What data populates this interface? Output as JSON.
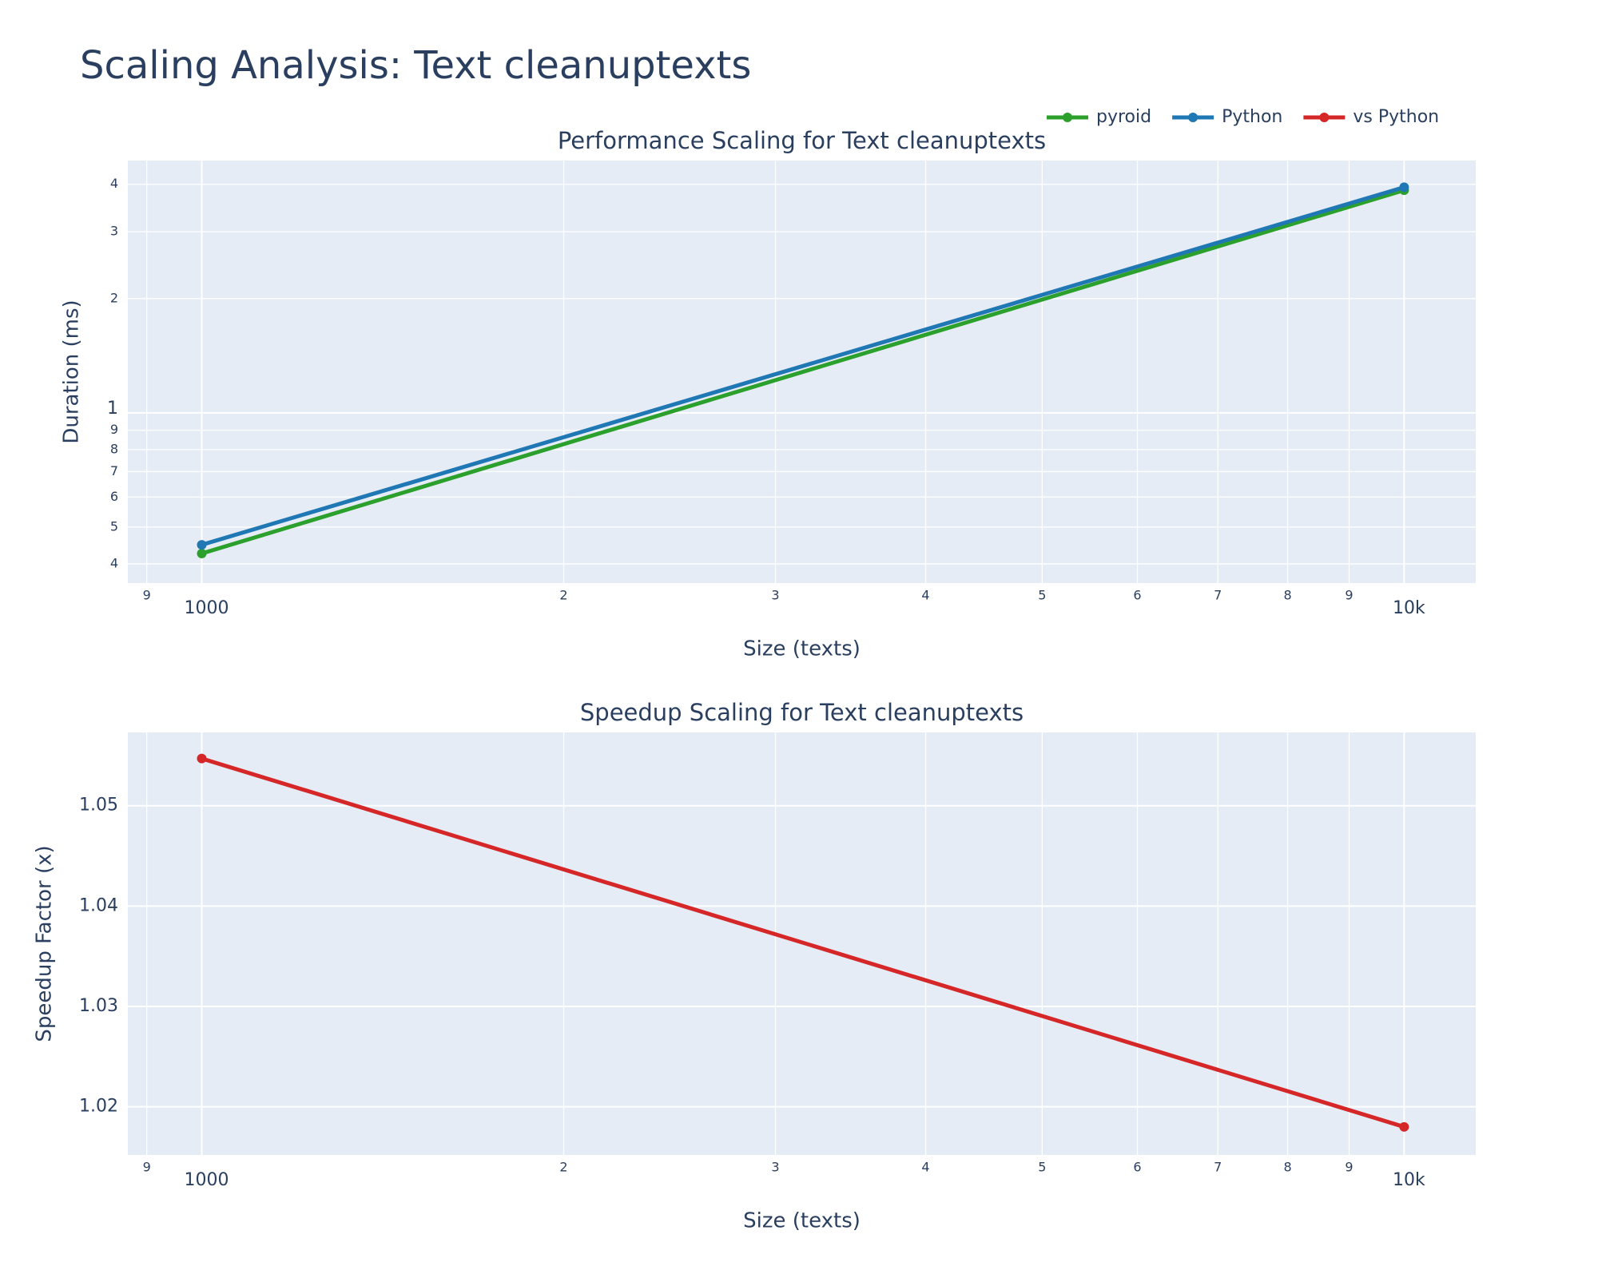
{
  "title": "Scaling Analysis: Text cleanuptexts",
  "legend_position": "top-right",
  "chart_data": [
    {
      "type": "line",
      "title": "Performance Scaling for Text cleanuptexts",
      "x_label": "Size (texts)",
      "y_label": "Duration (ms)",
      "log_x": true,
      "log_y": true,
      "grid": true,
      "x": [
        1000,
        10000
      ],
      "series": [
        {
          "name": "pyroid",
          "color": "#2ca02c",
          "values": [
            0.426,
            3.86
          ]
        },
        {
          "name": "Python",
          "color": "#1f77b4",
          "values": [
            0.449,
            3.93
          ]
        }
      ],
      "xlim": [
        868,
        11470
      ],
      "xticks": [
        {
          "value": 900,
          "label": "9"
        },
        1000,
        {
          "value": 2000,
          "label": "2"
        },
        {
          "value": 3000,
          "label": "3"
        },
        {
          "value": 4000,
          "label": "4"
        },
        {
          "value": 5000,
          "label": "5"
        },
        {
          "value": 6000,
          "label": "6"
        },
        {
          "value": 7000,
          "label": "7"
        },
        {
          "value": 8000,
          "label": "8"
        },
        {
          "value": 9000,
          "label": "9"
        },
        {
          "value": 10000,
          "label": "10k"
        }
      ],
      "ylim": [
        0.356,
        4.62
      ],
      "yticks": [
        {
          "value": 0.4,
          "label": "4"
        },
        {
          "value": 0.5,
          "label": "5"
        },
        {
          "value": 0.6,
          "label": "6"
        },
        {
          "value": 0.7,
          "label": "7"
        },
        {
          "value": 0.8,
          "label": "8"
        },
        {
          "value": 0.9,
          "label": "9"
        },
        1,
        2,
        3,
        4
      ]
    },
    {
      "type": "line",
      "title": "Speedup Scaling for Text cleanuptexts",
      "x_label": "Size (texts)",
      "y_label": "Speedup Factor (x)",
      "log_x": true,
      "log_y": false,
      "grid": true,
      "x": [
        1000,
        10000
      ],
      "series": [
        {
          "name": "vs Python",
          "color": "#d62728",
          "values": [
            1.0547,
            1.018
          ]
        }
      ],
      "xlim": [
        868,
        11470
      ],
      "xticks": [
        {
          "value": 900,
          "label": "9"
        },
        1000,
        {
          "value": 2000,
          "label": "2"
        },
        {
          "value": 3000,
          "label": "3"
        },
        {
          "value": 4000,
          "label": "4"
        },
        {
          "value": 5000,
          "label": "5"
        },
        {
          "value": 6000,
          "label": "6"
        },
        {
          "value": 7000,
          "label": "7"
        },
        {
          "value": 8000,
          "label": "8"
        },
        {
          "value": 9000,
          "label": "9"
        },
        {
          "value": 10000,
          "label": "10k"
        }
      ],
      "ylim": [
        1.0152,
        1.0573
      ],
      "yticks": [
        1.02,
        1.03,
        1.04,
        1.05
      ]
    }
  ]
}
